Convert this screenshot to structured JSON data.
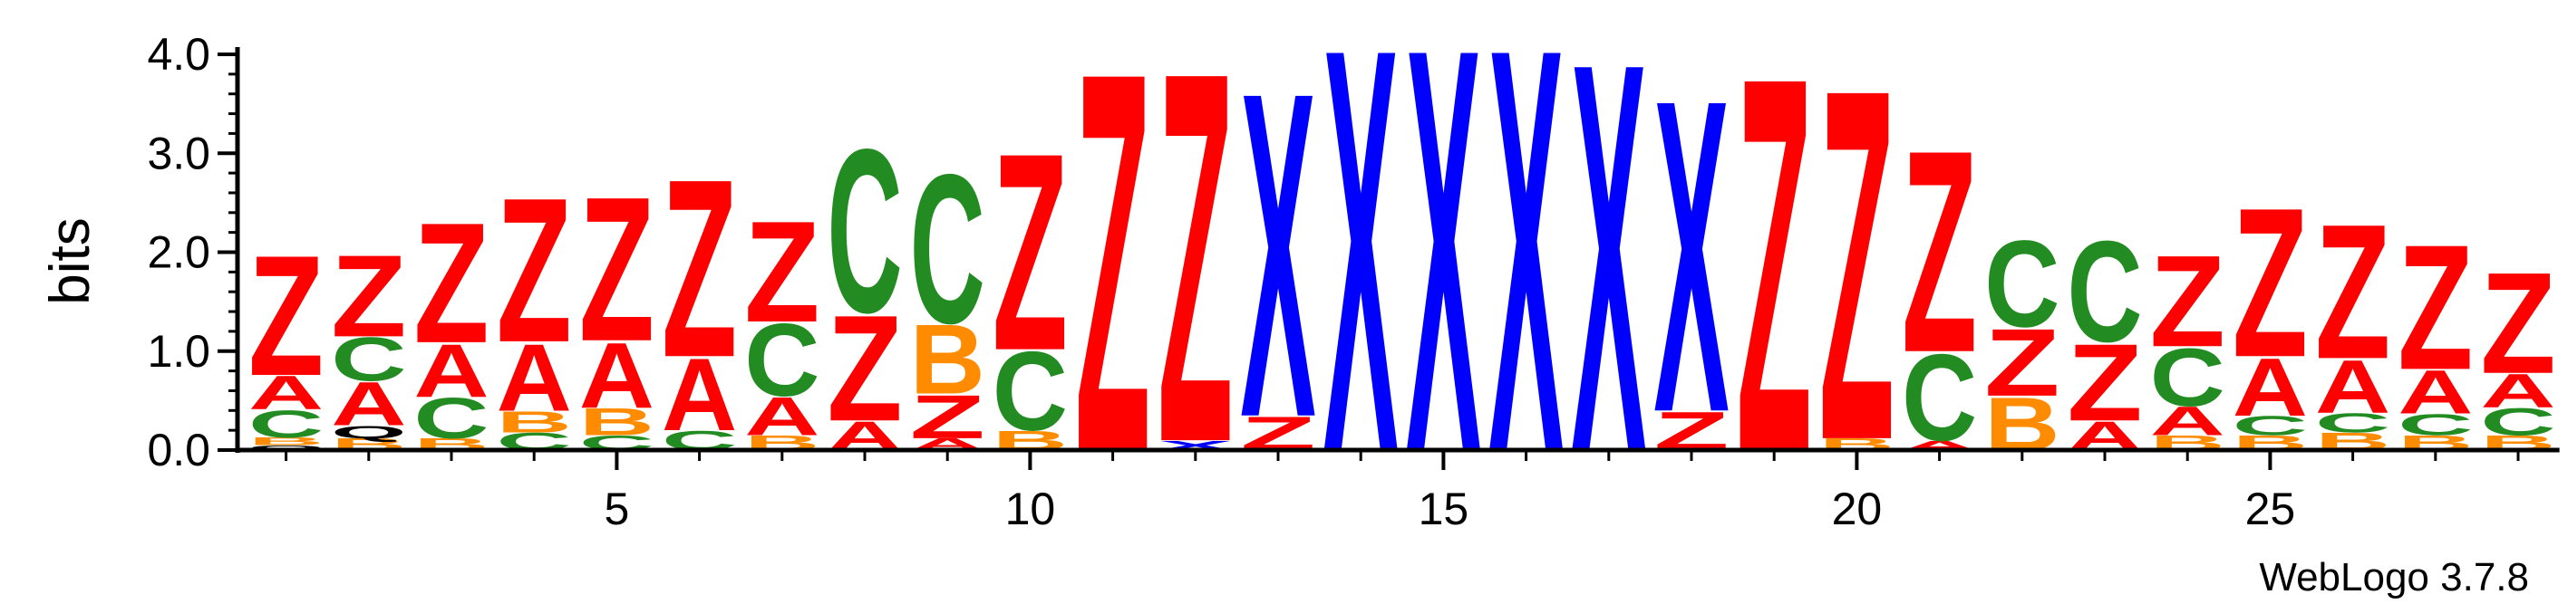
{
  "chart_data": {
    "type": "sequence-logo",
    "ylabel": "bits",
    "ylim": [
      0,
      4.0
    ],
    "yticks": [
      "0.0",
      "1.0",
      "2.0",
      "3.0",
      "4.0"
    ],
    "xlim": [
      0.5,
      28.5
    ],
    "xticks": [
      5,
      10,
      15,
      20,
      25
    ],
    "footer": "WebLogo 3.7.8",
    "colors": {
      "Z": "#ff0000",
      "A": "#ff0000",
      "C": "#228b22",
      "B": "#ff8c00",
      "X": "#0000ff"
    },
    "positions": [
      {
        "pos": 1,
        "stack": [
          [
            "Q",
            0.05
          ],
          [
            "B",
            0.08
          ],
          [
            "C",
            0.28
          ],
          [
            "A",
            0.35
          ],
          [
            "Z",
            1.25
          ]
        ]
      },
      {
        "pos": 2,
        "stack": [
          [
            "B",
            0.12
          ],
          [
            "Q",
            0.13
          ],
          [
            "A",
            0.45
          ],
          [
            "C",
            0.45
          ],
          [
            "Z",
            0.85
          ]
        ]
      },
      {
        "pos": 3,
        "stack": [
          [
            "B",
            0.12
          ],
          [
            "C",
            0.42
          ],
          [
            "A",
            0.55
          ],
          [
            "Z",
            1.25
          ]
        ]
      },
      {
        "pos": 4,
        "stack": [
          [
            "C",
            0.18
          ],
          [
            "B",
            0.22
          ],
          [
            "A",
            0.7
          ],
          [
            "Z",
            1.5
          ]
        ]
      },
      {
        "pos": 5,
        "stack": [
          [
            "C",
            0.15
          ],
          [
            "B",
            0.28
          ],
          [
            "A",
            0.68
          ],
          [
            "Z",
            1.5
          ]
        ]
      },
      {
        "pos": 6,
        "stack": [
          [
            "C",
            0.2
          ],
          [
            "A",
            0.75
          ],
          [
            "Z",
            1.85
          ]
        ]
      },
      {
        "pos": 7,
        "stack": [
          [
            "B",
            0.15
          ],
          [
            "A",
            0.4
          ],
          [
            "C",
            0.75
          ],
          [
            "Z",
            1.05
          ]
        ]
      },
      {
        "pos": 8,
        "stack": [
          [
            "A",
            0.3
          ],
          [
            "Z",
            1.1
          ],
          [
            "C",
            1.7
          ]
        ]
      },
      {
        "pos": 9,
        "stack": [
          [
            "A",
            0.12
          ],
          [
            "Z",
            0.45
          ],
          [
            "B",
            0.72
          ],
          [
            "C",
            1.55
          ]
        ]
      },
      {
        "pos": 10,
        "stack": [
          [
            "B",
            0.2
          ],
          [
            "C",
            0.82
          ],
          [
            "Z",
            2.05
          ]
        ]
      },
      {
        "pos": 11,
        "stack": [
          [
            "Z",
            3.95
          ]
        ]
      },
      {
        "pos": 12,
        "stack": [
          [
            "X",
            0.1
          ],
          [
            "Z",
            3.85
          ]
        ]
      },
      {
        "pos": 13,
        "stack": [
          [
            "Z",
            0.35
          ],
          [
            "X",
            3.38
          ]
        ]
      },
      {
        "pos": 14,
        "stack": [
          [
            "X",
            4.2
          ]
        ]
      },
      {
        "pos": 15,
        "stack": [
          [
            "X",
            4.2
          ]
        ]
      },
      {
        "pos": 16,
        "stack": [
          [
            "X",
            4.2
          ]
        ]
      },
      {
        "pos": 17,
        "stack": [
          [
            "X",
            4.05
          ]
        ]
      },
      {
        "pos": 18,
        "stack": [
          [
            "Z",
            0.4
          ],
          [
            "X",
            3.25
          ]
        ]
      },
      {
        "pos": 19,
        "stack": [
          [
            "Z",
            3.9
          ]
        ]
      },
      {
        "pos": 20,
        "stack": [
          [
            "B",
            0.12
          ],
          [
            "Z",
            3.65
          ]
        ]
      },
      {
        "pos": 21,
        "stack": [
          [
            "A",
            0.1
          ],
          [
            "C",
            0.9
          ],
          [
            "Z",
            2.1
          ]
        ]
      },
      {
        "pos": 22,
        "stack": [
          [
            "B",
            0.55
          ],
          [
            "Z",
            0.7
          ],
          [
            "C",
            0.9
          ]
        ]
      },
      {
        "pos": 23,
        "stack": [
          [
            "A",
            0.3
          ],
          [
            "Z",
            0.8
          ],
          [
            "C",
            1.05
          ]
        ]
      },
      {
        "pos": 24,
        "stack": [
          [
            "B",
            0.15
          ],
          [
            "A",
            0.3
          ],
          [
            "C",
            0.6
          ],
          [
            "Z",
            0.95
          ]
        ]
      },
      {
        "pos": 25,
        "stack": [
          [
            "B",
            0.15
          ],
          [
            "C",
            0.2
          ],
          [
            "A",
            0.6
          ],
          [
            "Z",
            1.55
          ]
        ]
      },
      {
        "pos": 26,
        "stack": [
          [
            "B",
            0.18
          ],
          [
            "C",
            0.2
          ],
          [
            "A",
            0.55
          ],
          [
            "Z",
            1.4
          ]
        ]
      },
      {
        "pos": 27,
        "stack": [
          [
            "B",
            0.15
          ],
          [
            "C",
            0.22
          ],
          [
            "A",
            0.45
          ],
          [
            "Z",
            1.3
          ]
        ]
      },
      {
        "pos": 28,
        "stack": [
          [
            "B",
            0.15
          ],
          [
            "C",
            0.28
          ],
          [
            "A",
            0.35
          ],
          [
            "Z",
            1.05
          ]
        ]
      }
    ]
  }
}
